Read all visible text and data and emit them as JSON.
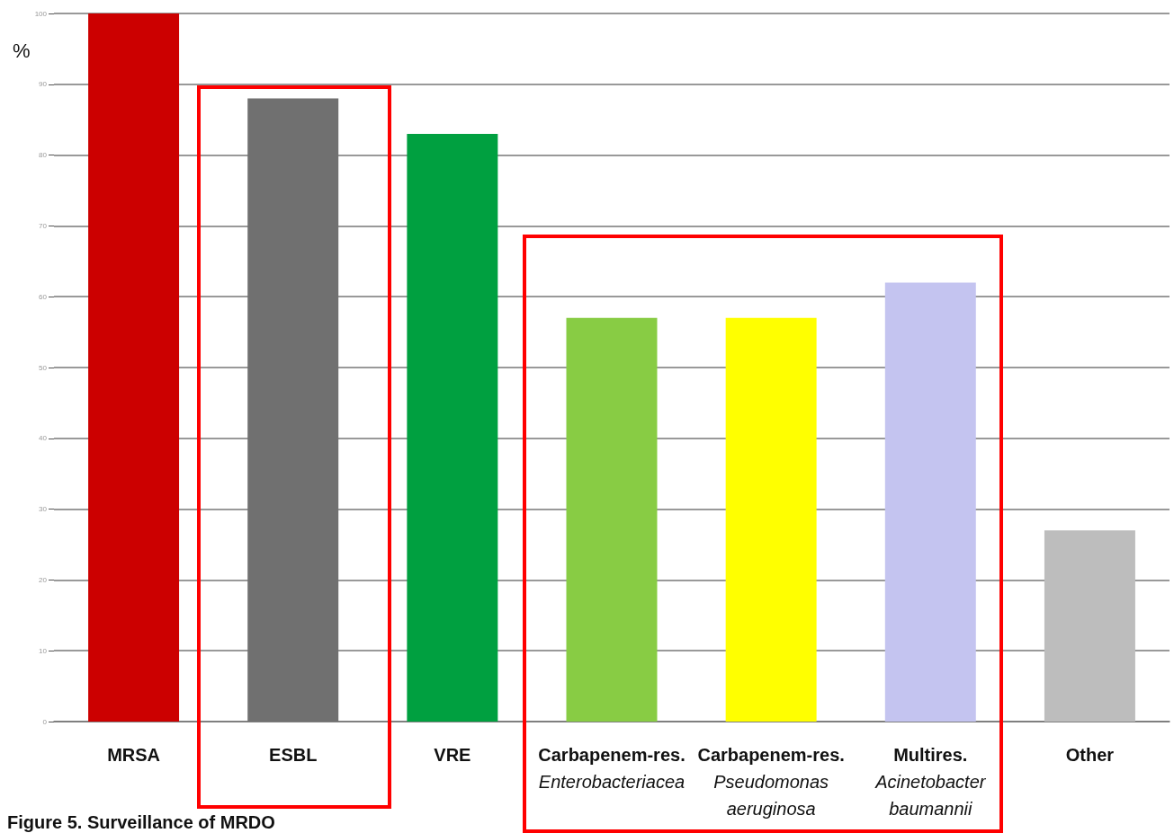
{
  "chart_data": {
    "type": "bar",
    "ylabel": "%",
    "categories": [
      "MRSA",
      "ESBL",
      "VRE",
      "Carbapenem-res.\nEnterobacteriacea",
      "Carbapenem-res.\nPseudomonas\naeruginosa",
      "Multires.\nAcinetobacter\nbaumannii",
      "Other"
    ],
    "values": [
      100,
      88,
      83,
      57,
      57,
      62,
      27
    ],
    "colors": [
      "#cc0000",
      "#707070",
      "#00a040",
      "#88cc44",
      "#ffff00",
      "#c4c4f0",
      "#bdbdbd"
    ],
    "ylim": [
      0,
      100
    ],
    "yticks": [
      0,
      10,
      20,
      30,
      40,
      50,
      60,
      70,
      80,
      90,
      100
    ],
    "grid": "y",
    "annotations": [
      "Figure 5. Surveillance of MRDO"
    ]
  }
}
